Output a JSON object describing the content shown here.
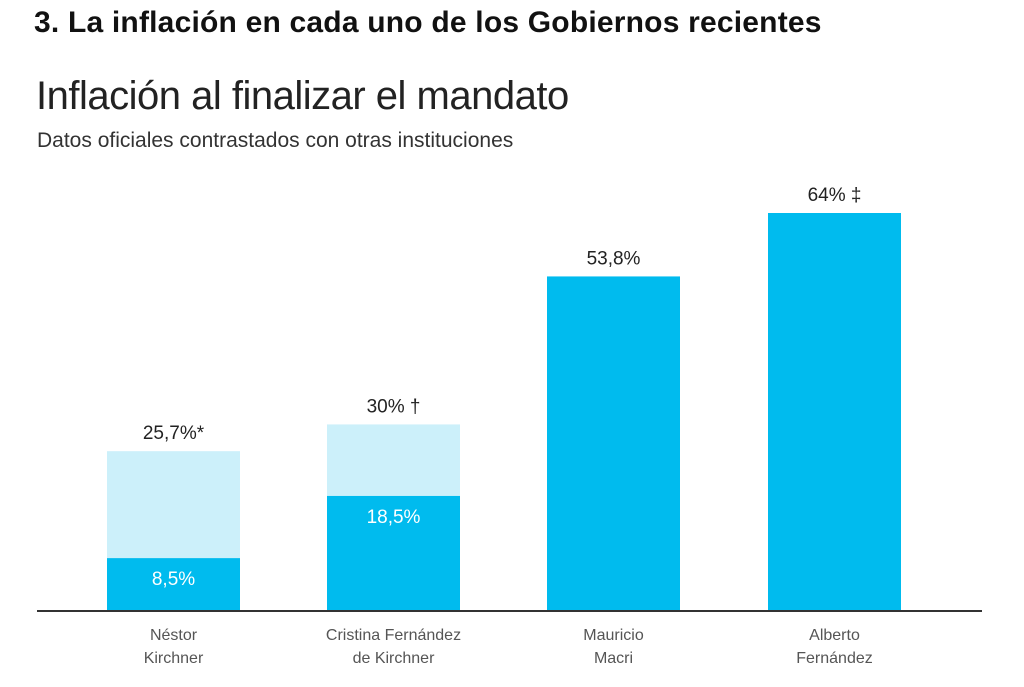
{
  "header": {
    "section_title": "3. La inflación en cada uno de los Gobiernos recientes"
  },
  "chart_data": {
    "type": "bar",
    "title": "Inflación al finalizar el mandato",
    "subtitle": "Datos oficiales contrastados con otras instituciones",
    "categories": [
      [
        "Néstor",
        "Kirchner"
      ],
      [
        "Cristina Fernández",
        "de Kirchner"
      ],
      [
        "Mauricio",
        "Macri"
      ],
      [
        "Alberto",
        "Fernández"
      ]
    ],
    "series": [
      {
        "values": [
          8.5,
          18.5,
          53.8,
          64
        ]
      },
      {
        "values": [
          25.7,
          30,
          null,
          null
        ]
      }
    ],
    "labels_top": [
      "25,7%*",
      "30% †",
      "53,8%",
      "64% ‡"
    ],
    "labels_inner": [
      "8,5%",
      "18,5%",
      null,
      null
    ],
    "ylim": [
      0,
      64
    ],
    "grid": false,
    "colors": {
      "primary": "#00bbee",
      "secondary": "#ccf0fa",
      "axis": "#333333"
    }
  }
}
